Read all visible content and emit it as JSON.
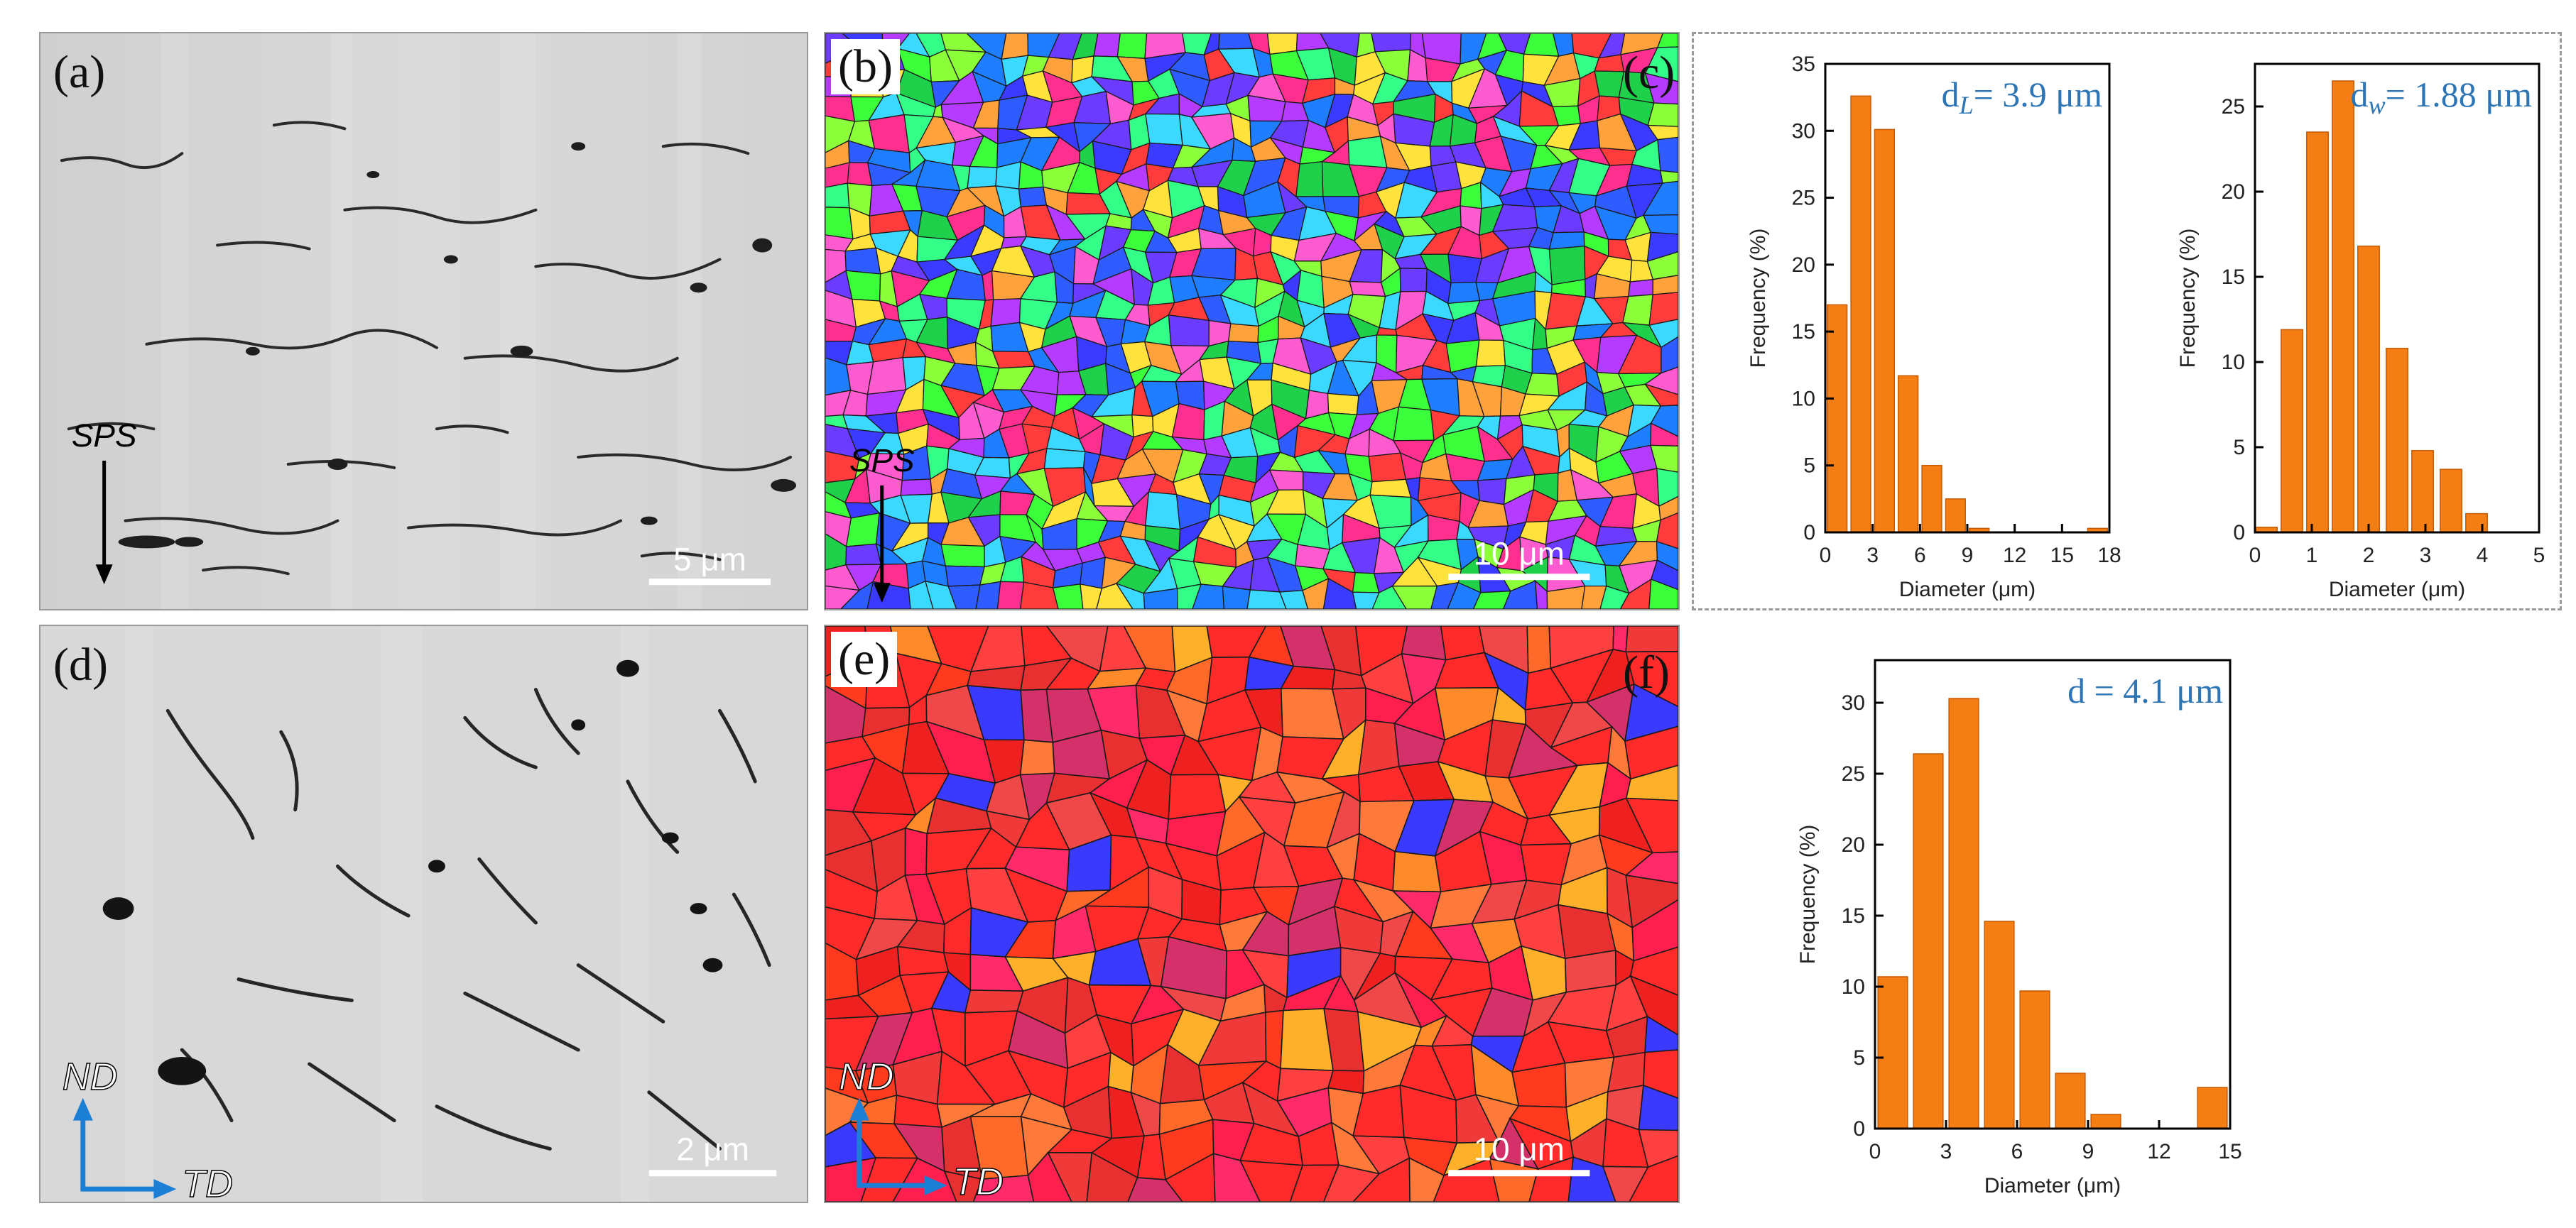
{
  "panels": {
    "a": {
      "label": "(a)",
      "direction": "SPS",
      "scale": "5 μm"
    },
    "b": {
      "label": "(b)",
      "direction": "SPS",
      "scale": "10 μm"
    },
    "c": {
      "label": "(c)"
    },
    "d": {
      "label": "(d)",
      "axis_y": "ND",
      "axis_x": "TD",
      "scale": "2 μm"
    },
    "e": {
      "label": "(e)",
      "axis_y": "ND",
      "axis_x": "TD",
      "scale": "10 μm"
    },
    "f": {
      "label": "(f)"
    }
  },
  "colors": {
    "bar": "#f47d14",
    "bar_edge": "#c85a00",
    "annotation": "#2e75b6",
    "arrow": "#1b7fd6"
  },
  "chart_data": [
    {
      "id": "c-left",
      "type": "bar",
      "annotation": {
        "sym": "d",
        "sub": "L",
        "rest": "= 3.9 μm"
      },
      "xlabel": "Diameter (μm)",
      "ylabel": "Frequency (%)",
      "xlim": [
        0,
        18
      ],
      "ylim": [
        0,
        35
      ],
      "xticks": [
        0,
        3,
        6,
        9,
        12,
        15,
        18
      ],
      "yticks": [
        0,
        5,
        10,
        15,
        20,
        25,
        30,
        35
      ],
      "bar_width": 1.25,
      "bars": [
        {
          "x": 0.75,
          "value": 17.0
        },
        {
          "x": 2.25,
          "value": 32.6
        },
        {
          "x": 3.75,
          "value": 30.1
        },
        {
          "x": 5.25,
          "value": 11.7
        },
        {
          "x": 6.75,
          "value": 5.0
        },
        {
          "x": 8.25,
          "value": 2.5
        },
        {
          "x": 9.75,
          "value": 0.3
        },
        {
          "x": 17.25,
          "value": 0.3
        }
      ]
    },
    {
      "id": "c-right",
      "type": "bar",
      "annotation": {
        "sym": "d",
        "sub": "w",
        "rest": "= 1.88 μm"
      },
      "xlabel": "Diameter (μm)",
      "ylabel": "Frequency (%)",
      "xlim": [
        0,
        5
      ],
      "ylim": [
        0,
        27.5
      ],
      "xticks": [
        0,
        1,
        2,
        3,
        4,
        5
      ],
      "yticks": [
        0,
        5,
        10,
        15,
        20,
        25
      ],
      "bar_width": 0.38,
      "bars": [
        {
          "x": 0.2,
          "value": 0.3
        },
        {
          "x": 0.65,
          "value": 11.9
        },
        {
          "x": 1.1,
          "value": 23.5
        },
        {
          "x": 1.55,
          "value": 26.5
        },
        {
          "x": 2.0,
          "value": 16.8
        },
        {
          "x": 2.5,
          "value": 10.8
        },
        {
          "x": 2.95,
          "value": 4.8
        },
        {
          "x": 3.45,
          "value": 3.7
        },
        {
          "x": 3.9,
          "value": 1.1
        }
      ]
    },
    {
      "id": "f",
      "type": "bar",
      "annotation": {
        "sym": "d",
        "sub": "",
        "rest": " = 4.1 μm"
      },
      "xlabel": "Diameter (μm)",
      "ylabel": "Frequency (%)",
      "xlim": [
        0,
        15
      ],
      "ylim": [
        0,
        33
      ],
      "xticks": [
        0,
        3,
        6,
        9,
        12,
        15
      ],
      "yticks": [
        0,
        5,
        10,
        15,
        20,
        25,
        30
      ],
      "bar_width": 1.25,
      "bars": [
        {
          "x": 0.75,
          "value": 10.7
        },
        {
          "x": 2.25,
          "value": 26.4
        },
        {
          "x": 3.75,
          "value": 30.3
        },
        {
          "x": 5.25,
          "value": 14.6
        },
        {
          "x": 6.75,
          "value": 9.7
        },
        {
          "x": 8.25,
          "value": 3.9
        },
        {
          "x": 9.75,
          "value": 1.0
        },
        {
          "x": 14.25,
          "value": 2.9
        }
      ]
    }
  ]
}
